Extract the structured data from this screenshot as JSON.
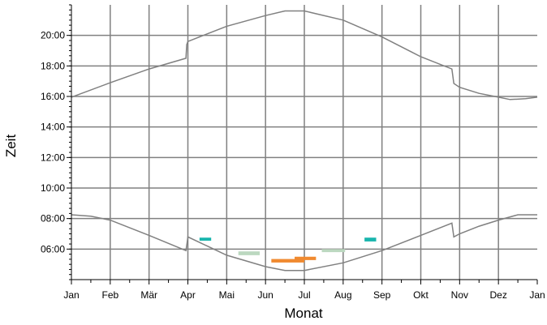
{
  "chart_data": {
    "type": "line",
    "title": "",
    "xlabel": "Monat",
    "ylabel": "Zeit",
    "x_ticks": [
      "Jan",
      "Feb",
      "Mär",
      "Apr",
      "Mai",
      "Jun",
      "Jul",
      "Aug",
      "Sep",
      "Okt",
      "Nov",
      "Dez",
      "Jan"
    ],
    "y_ticks": [
      "06:00",
      "08:00",
      "10:00",
      "12:00",
      "14:00",
      "16:00",
      "18:00",
      "20:00"
    ],
    "xlim": [
      0,
      12
    ],
    "ylim_hours": [
      4.0,
      22.0
    ],
    "grid": true,
    "colors": {
      "curve": "#808080",
      "grid": "#808080",
      "axis": "#000000",
      "teal": "#19b5ad",
      "light_green": "#bcd8c0",
      "orange": "#f08a30"
    },
    "series": [
      {
        "role": "upper-curve",
        "x": [
          0.0,
          1.0,
          2.0,
          2.95,
          2.97,
          3.0,
          4.0,
          5.0,
          5.5,
          6.0,
          7.0,
          8.0,
          9.0,
          9.8,
          9.85,
          10.0,
          10.5,
          11.0,
          11.3,
          11.7,
          12.0
        ],
        "y": [
          15.95,
          16.9,
          17.8,
          18.5,
          19.4,
          19.6,
          20.6,
          21.3,
          21.6,
          21.6,
          21.0,
          19.9,
          18.6,
          17.8,
          16.85,
          16.6,
          16.2,
          15.95,
          15.8,
          15.85,
          15.95
        ]
      },
      {
        "role": "lower-curve",
        "x": [
          0.0,
          0.5,
          1.0,
          2.0,
          2.95,
          2.98,
          3.0,
          3.5,
          4.0,
          5.0,
          5.5,
          6.0,
          7.0,
          8.0,
          9.0,
          9.8,
          9.85,
          10.0,
          10.5,
          11.0,
          11.5,
          12.0
        ],
        "y": [
          8.25,
          8.15,
          7.9,
          6.9,
          5.9,
          6.4,
          6.8,
          6.2,
          5.6,
          4.85,
          4.6,
          4.6,
          5.1,
          5.9,
          6.9,
          7.7,
          6.8,
          7.0,
          7.5,
          7.9,
          8.25,
          8.25
        ]
      }
    ],
    "markers": [
      {
        "color": "teal",
        "x": [
          3.3,
          3.6
        ],
        "y": [
          6.55,
          6.75
        ]
      },
      {
        "color": "light_green",
        "x": [
          4.3,
          4.85
        ],
        "y": [
          5.6,
          5.85
        ]
      },
      {
        "color": "orange",
        "x": [
          5.15,
          6.0
        ],
        "y": [
          5.12,
          5.35
        ]
      },
      {
        "color": "orange",
        "x": [
          5.75,
          6.3
        ],
        "y": [
          5.28,
          5.5
        ]
      },
      {
        "color": "light_green",
        "x": [
          6.45,
          7.05
        ],
        "y": [
          5.8,
          6.0
        ]
      },
      {
        "color": "teal",
        "x": [
          7.55,
          7.85
        ],
        "y": [
          6.5,
          6.75
        ]
      }
    ]
  }
}
